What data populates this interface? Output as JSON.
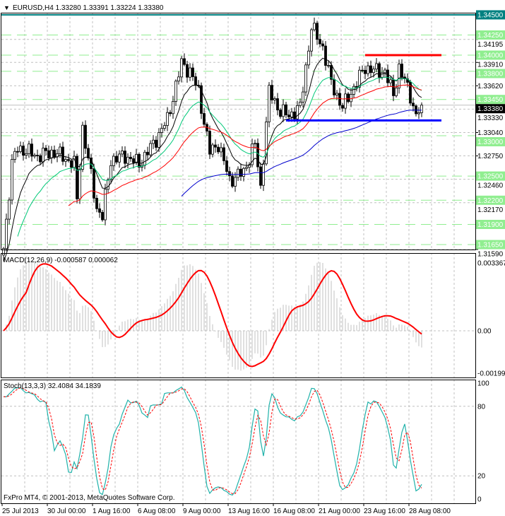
{
  "header": {
    "menu_glyph": "▼",
    "title": "EURUSD,H4  1.33280 1.33391 1.33224 1.33380"
  },
  "macd_header": "MACD(12,26,9) -0.000587 0.000062",
  "stoch_header": "Stoch(13,3,3) 32.4084 34.1839",
  "copyright": "FxPro MT4, © 2001-2013, MetaQuotes Software Corp.",
  "colors": {
    "grid": "#c0c0c0",
    "level_line": "#90ee90",
    "level_label_bg": "#90ee90",
    "resistance_top": "#008080",
    "red_line": "#ff0000",
    "blue_line": "#0000ff",
    "current_price_bg": "#000000",
    "macd_hist": "#c0c0c0",
    "macd_signal": "#ff0000",
    "stoch_main": "#20b2aa",
    "stoch_signal": "#ff0000"
  },
  "chart_data": [
    {
      "type": "candlestick",
      "symbol": "EURUSD",
      "timeframe": "H4",
      "ylim": [
        1.3155,
        1.347
      ],
      "price_waypoints": [
        [
          0,
          1.316
        ],
        [
          3,
          1.3265
        ],
        [
          5,
          1.3285
        ],
        [
          12,
          1.3275
        ],
        [
          18,
          1.328
        ],
        [
          25,
          1.3265
        ],
        [
          26,
          1.322
        ],
        [
          28,
          1.331
        ],
        [
          33,
          1.321
        ],
        [
          35,
          1.32
        ],
        [
          38,
          1.327
        ],
        [
          43,
          1.3275
        ],
        [
          48,
          1.3265
        ],
        [
          53,
          1.329
        ],
        [
          58,
          1.332
        ],
        [
          63,
          1.339
        ],
        [
          66,
          1.338
        ],
        [
          69,
          1.3355
        ],
        [
          73,
          1.328
        ],
        [
          76,
          1.329
        ],
        [
          80,
          1.3245
        ],
        [
          85,
          1.3255
        ],
        [
          89,
          1.329
        ],
        [
          91,
          1.3235
        ],
        [
          94,
          1.3355
        ],
        [
          98,
          1.333
        ],
        [
          101,
          1.3325
        ],
        [
          105,
          1.3335
        ],
        [
          109,
          1.3435
        ],
        [
          113,
          1.341
        ],
        [
          116,
          1.3365
        ],
        [
          120,
          1.3335
        ],
        [
          124,
          1.336
        ],
        [
          128,
          1.3385
        ],
        [
          132,
          1.338
        ],
        [
          135,
          1.338
        ],
        [
          138,
          1.335
        ],
        [
          140,
          1.3385
        ],
        [
          144,
          1.335
        ],
        [
          146,
          1.3325
        ],
        [
          148,
          1.3338
        ]
      ],
      "moving_averages": [
        {
          "color": "#000000",
          "period": 10,
          "start": 0,
          "seed": 1.314
        },
        {
          "color": "#00c878",
          "period": 20,
          "start": 5,
          "seed": 1.312
        },
        {
          "color": "#ff0000",
          "period": 40,
          "start": 23,
          "seed": 1.308
        },
        {
          "color": "#0000cd",
          "period": 90,
          "start": 63,
          "seed": 1.304
        }
      ],
      "axis_ticks": [
        "1.34195",
        "1.33910",
        "1.33620",
        "1.33330",
        "1.33040",
        "1.32750",
        "1.32460",
        "1.32170",
        "1.31590"
      ],
      "levels": [
        {
          "value": "1.34500",
          "style": "teal"
        },
        {
          "value": "1.34250",
          "style": "green"
        },
        {
          "value": "1.34000",
          "style": "green"
        },
        {
          "value": "1.33800",
          "style": "green"
        },
        {
          "value": "1.33450",
          "style": "green"
        },
        {
          "value": "1.33000",
          "style": "green"
        },
        {
          "value": "1.32500",
          "style": "green"
        },
        {
          "value": "1.32200",
          "style": "green"
        },
        {
          "value": "1.31900",
          "style": "green"
        },
        {
          "value": "1.31650",
          "style": "green"
        }
      ],
      "current_price": "1.33380",
      "trend_segments": [
        {
          "price": 1.34,
          "from_bar": 128,
          "to_bar": 155,
          "color": "#ff0000"
        },
        {
          "price": 1.3319,
          "from_bar": 100,
          "to_bar": 155,
          "color": "#0000ff"
        }
      ],
      "time_labels": [
        "25 Jul 2013",
        "30 Jul 00:00",
        "1 Aug 16:00",
        "6 Aug 08:00",
        "9 Aug 00:00",
        "13 Aug 16:00",
        "16 Aug 08:00",
        "21 Aug 00:00",
        "23 Aug 16:00",
        "28 Aug 08:00"
      ]
    },
    {
      "type": "bar",
      "name": "MACD(12,26,9)",
      "main": -0.000587,
      "signal": 6.2e-05,
      "ylim": [
        -0.001991,
        0.003367
      ],
      "axis_labels": [
        "0.003367",
        "0.00",
        "-0.001991"
      ]
    },
    {
      "type": "line",
      "name": "Stoch(13,3,3)",
      "main": 32.4084,
      "signal": 34.1839,
      "ylim": [
        0,
        100
      ],
      "axis_labels": [
        "100",
        "80",
        "20",
        "0"
      ]
    }
  ]
}
